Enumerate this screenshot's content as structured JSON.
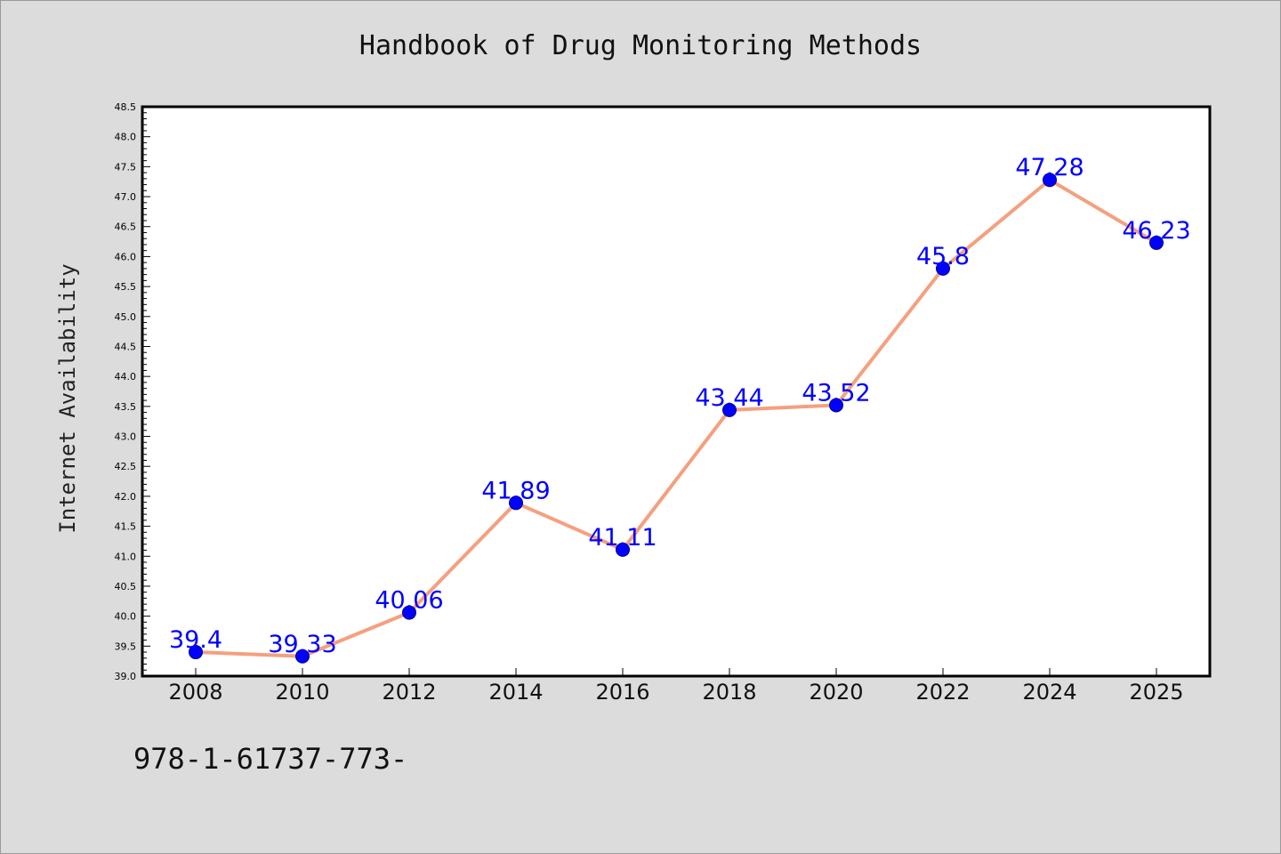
{
  "header": {
    "title": "Handbook of Drug Monitoring Methods"
  },
  "footer": {
    "text": "978-1-61737-773-"
  },
  "colors": {
    "line": "#f4a07f",
    "marker": "#0000ff",
    "label": "#0000ff",
    "plot_bg": "#ffffff",
    "page_bg": "#dcdcdc"
  },
  "chart_data": {
    "type": "line",
    "title": "Handbook of Drug Monitoring Methods",
    "xlabel": "",
    "ylabel": "Internet Availability",
    "categories": [
      "2008",
      "2010",
      "2012",
      "2014",
      "2016",
      "2018",
      "2020",
      "2022",
      "2024",
      "2025"
    ],
    "values": [
      39.4,
      39.33,
      40.06,
      41.89,
      41.11,
      43.44,
      43.52,
      45.8,
      47.28,
      46.23
    ],
    "data_labels": [
      "39.4",
      "39.33",
      "40.06",
      "41.89",
      "41.11",
      "43.44",
      "43.52",
      "45.8",
      "47.28",
      "46.23"
    ],
    "yticks": [
      "39.0",
      "39.5",
      "40.0",
      "40.5",
      "41.0",
      "41.5",
      "42.0",
      "42.5",
      "43.0",
      "43.5",
      "44.0",
      "44.5",
      "45.0",
      "45.5",
      "46.0",
      "46.5",
      "47.0",
      "47.5",
      "48.0",
      "48.5"
    ],
    "ylim": [
      39.0,
      48.5
    ],
    "grid": false,
    "legend": "none"
  }
}
